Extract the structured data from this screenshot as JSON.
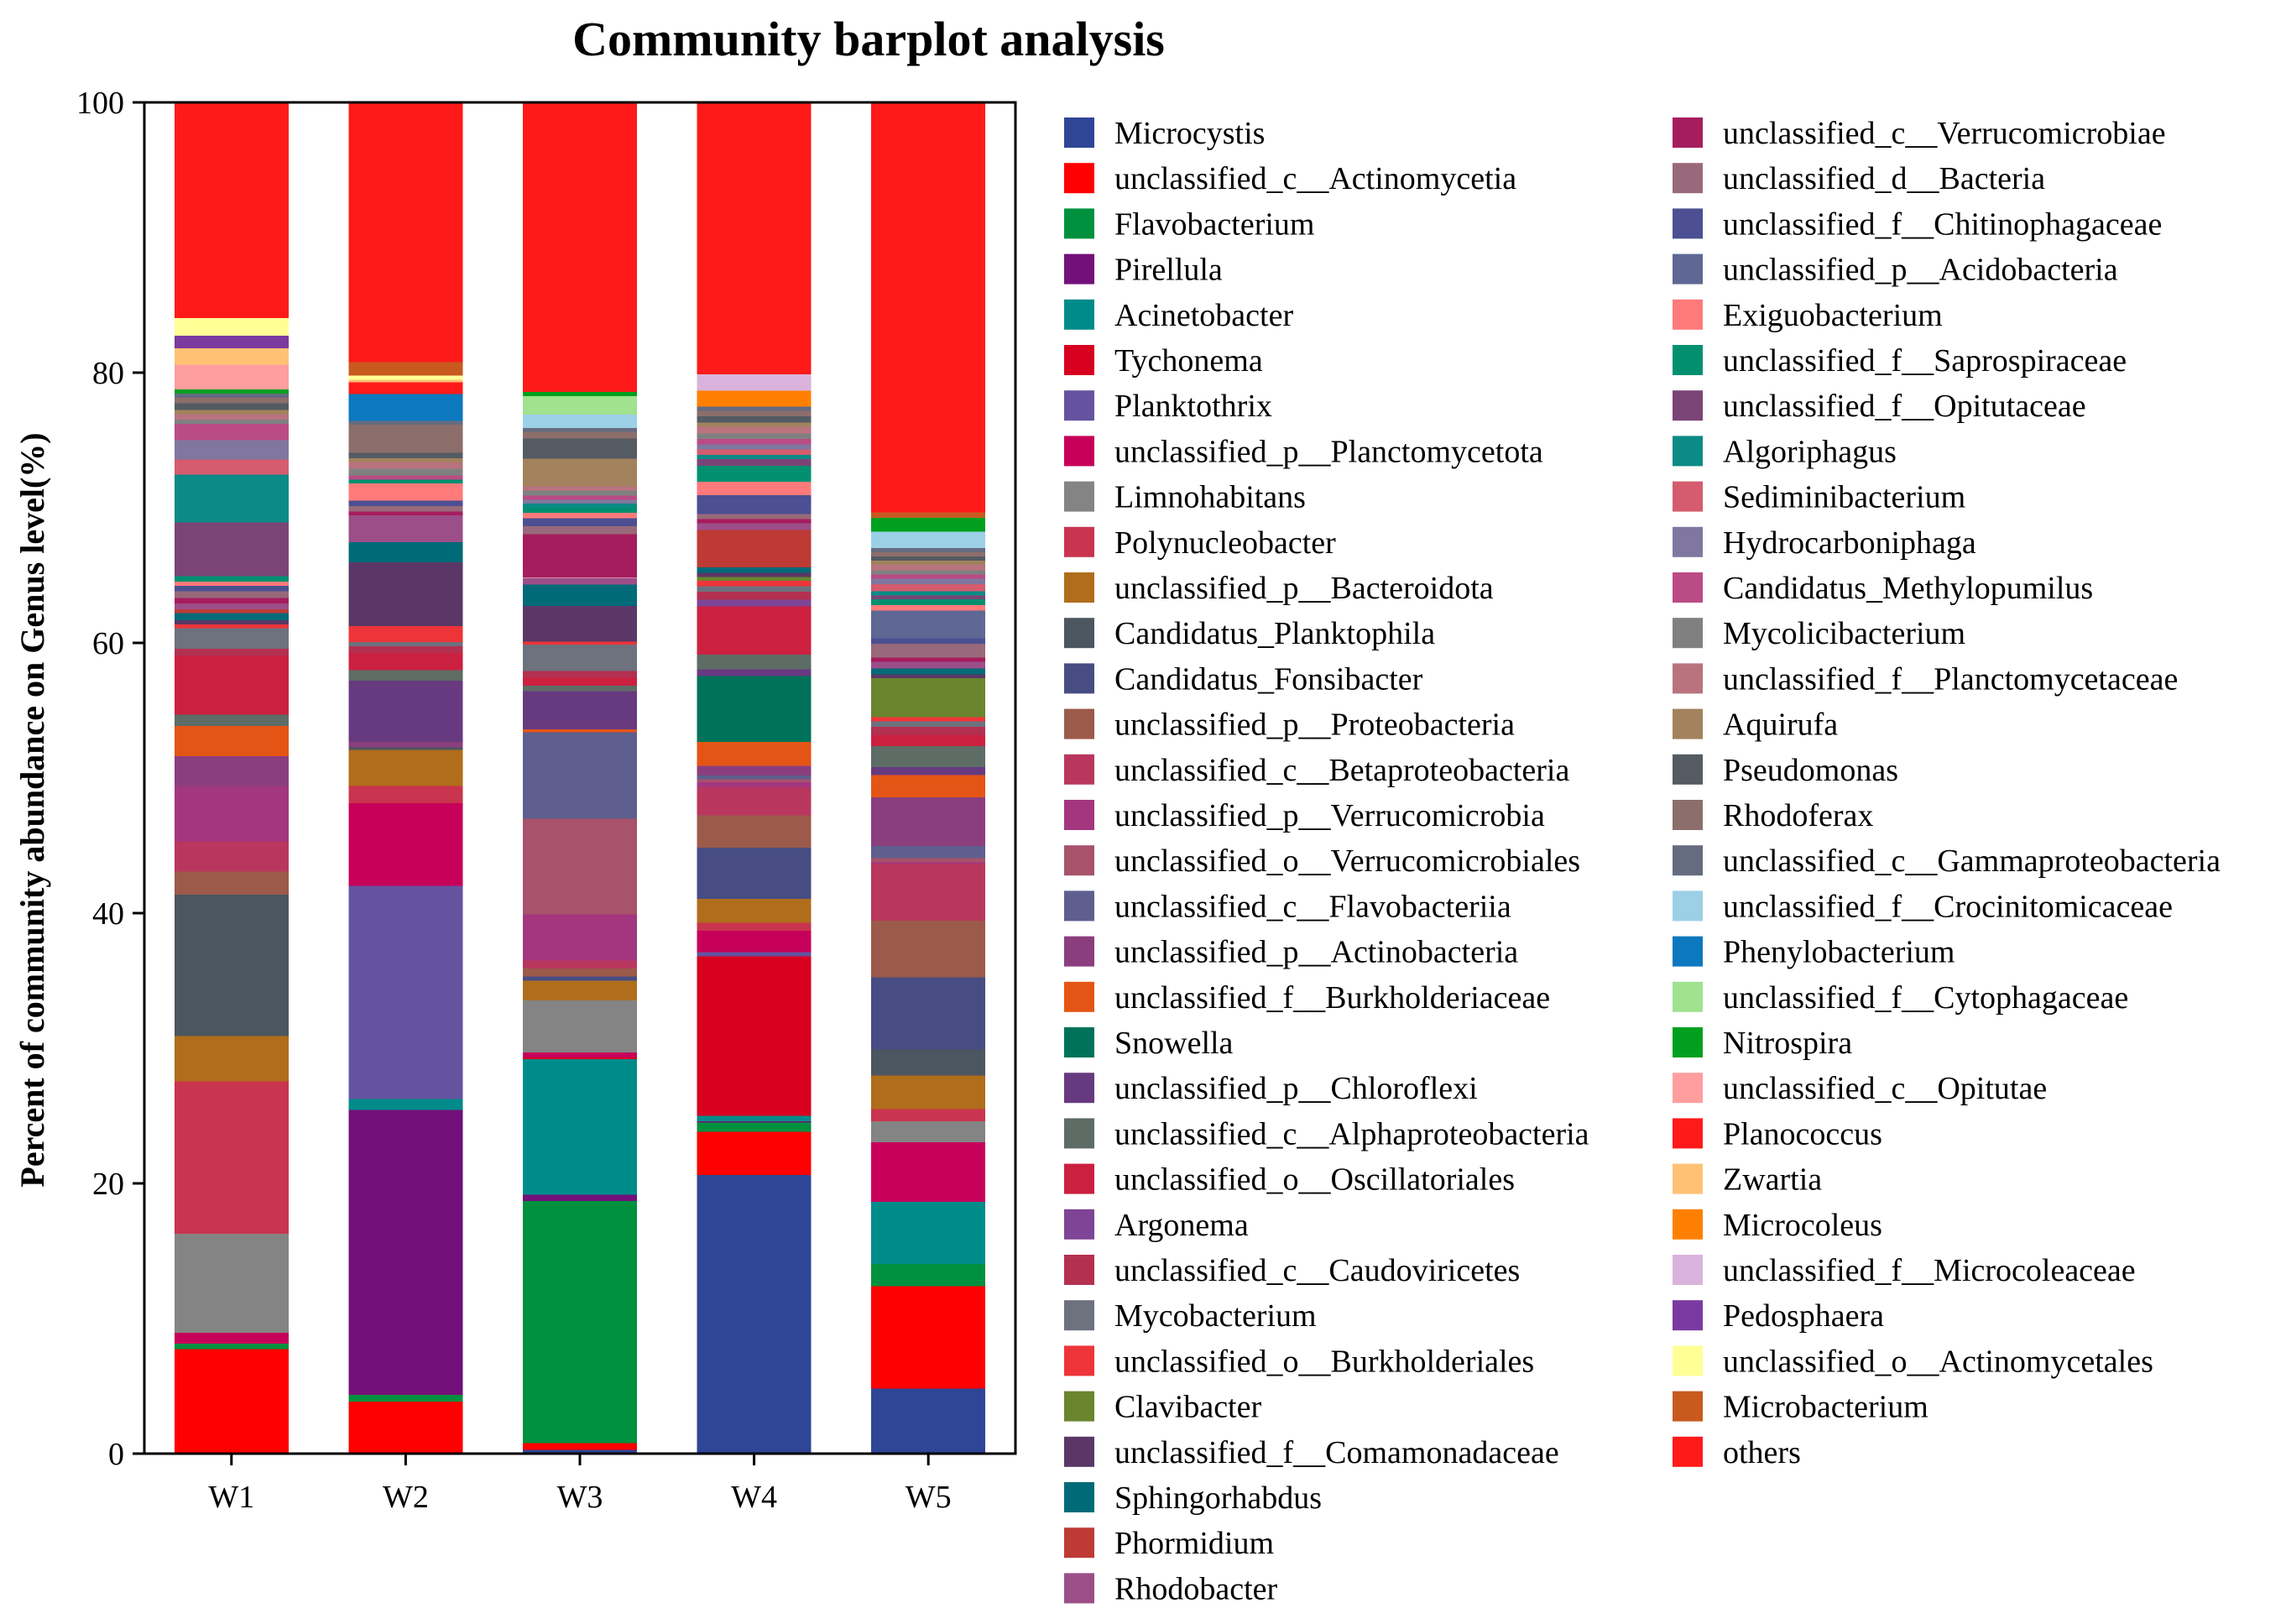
{
  "chart_data": {
    "type": "bar",
    "stacked": true,
    "title": "Community barplot analysis",
    "xlabel": "",
    "ylabel": "Percent of community abundance on Genus level(%)",
    "ylim": [
      0,
      100
    ],
    "yticks": [
      0,
      20,
      40,
      60,
      80,
      100
    ],
    "grid": false,
    "legend_position": "right",
    "categories": [
      "W1",
      "W2",
      "W3",
      "W4",
      "W5"
    ],
    "series": [
      {
        "name": "Microcystis",
        "color": "#2F4596",
        "values": [
          0.0,
          0.0,
          0.3,
          20.8,
          4.7
        ]
      },
      {
        "name": "unclassified_c__Actinomycetia",
        "color": "#FF0000",
        "values": [
          7.6,
          3.9,
          0.5,
          3.2,
          7.4
        ]
      },
      {
        "name": "Flavobacterium",
        "color": "#00913F",
        "values": [
          0.4,
          0.5,
          18.2,
          0.7,
          1.6
        ]
      },
      {
        "name": "Pirellula",
        "color": "#73107A",
        "values": [
          0.0,
          21.4,
          0.5,
          0.1,
          0.0
        ]
      },
      {
        "name": "Acinetobacter",
        "color": "#008B8B",
        "values": [
          0.0,
          0.8,
          10.2,
          0.4,
          4.5
        ]
      },
      {
        "name": "Tychonema",
        "color": "#D7001F",
        "values": [
          0.0,
          0.0,
          0.1,
          11.9,
          0.0
        ]
      },
      {
        "name": "Planktothrix",
        "color": "#6553A0",
        "values": [
          0.0,
          16.0,
          0.0,
          0.3,
          0.0
        ]
      },
      {
        "name": "unclassified_p__Planctomycetota",
        "color": "#C7005A",
        "values": [
          0.8,
          6.2,
          0.4,
          1.6,
          4.3
        ]
      },
      {
        "name": "Limnohabitans",
        "color": "#848484",
        "values": [
          7.2,
          0.0,
          3.9,
          0.0,
          1.5
        ]
      },
      {
        "name": "Polynucleobacter",
        "color": "#C9344E",
        "values": [
          11.1,
          1.3,
          0.0,
          0.6,
          0.9
        ]
      },
      {
        "name": "unclassified_p__Bacteroidota",
        "color": "#B06D1C",
        "values": [
          3.3,
          2.7,
          1.5,
          1.8,
          2.4
        ]
      },
      {
        "name": "Candidatus_Planktophila",
        "color": "#4C5660",
        "values": [
          10.3,
          0.2,
          0.0,
          0.0,
          1.9
        ]
      },
      {
        "name": "Candidatus_Fonsibacter",
        "color": "#474D82",
        "values": [
          0.0,
          0.0,
          0.3,
          3.8,
          5.2
        ]
      },
      {
        "name": "unclassified_p__Proteobacteria",
        "color": "#9C5A4A",
        "values": [
          1.7,
          0.0,
          0.6,
          2.4,
          4.1
        ]
      },
      {
        "name": "unclassified_c__Betaproteobacteria",
        "color": "#B9375E",
        "values": [
          2.2,
          0.0,
          0.6,
          2.1,
          4.1
        ]
      },
      {
        "name": "unclassified_p__Verrucomicrobia",
        "color": "#A3367F",
        "values": [
          4.0,
          0.0,
          3.5,
          0.4,
          0.1
        ]
      },
      {
        "name": "unclassified_o__Verrucomicrobiales",
        "color": "#A8526B",
        "values": [
          0.0,
          0.0,
          7.2,
          0.2,
          0.3
        ]
      },
      {
        "name": "unclassified_c__Flavobacteriia",
        "color": "#5E5F8E",
        "values": [
          0.0,
          0.0,
          6.5,
          0.3,
          0.9
        ]
      },
      {
        "name": "unclassified_p__Actinobacteria",
        "color": "#8B3E7E",
        "values": [
          2.2,
          0.4,
          0.0,
          0.7,
          3.5
        ]
      },
      {
        "name": "unclassified_f__Burkholderiaceae",
        "color": "#E45515",
        "values": [
          2.2,
          0.0,
          0.2,
          1.8,
          1.6
        ]
      },
      {
        "name": "Snowella",
        "color": "#00725A",
        "values": [
          0.0,
          0.0,
          0.0,
          4.9,
          0.0
        ]
      },
      {
        "name": "unclassified_p__Chloroflexi",
        "color": "#673A80",
        "values": [
          0.0,
          4.6,
          2.9,
          0.5,
          0.6
        ]
      },
      {
        "name": "unclassified_c__Alphaproteobacteria",
        "color": "#5D6D66",
        "values": [
          0.8,
          0.8,
          0.4,
          1.1,
          1.5
        ]
      },
      {
        "name": "unclassified_o__Oscillatoriales",
        "color": "#CC2040",
        "values": [
          4.3,
          1.3,
          0.6,
          3.6,
          0.8
        ]
      },
      {
        "name": "Argonema",
        "color": "#7E4496",
        "values": [
          0.0,
          0.0,
          0.0,
          0.5,
          0.0
        ]
      },
      {
        "name": "unclassified_c__Caudoviricetes",
        "color": "#B43050",
        "values": [
          0.5,
          0.5,
          0.5,
          0.6,
          0.6
        ]
      },
      {
        "name": "Mycobacterium",
        "color": "#6E717E",
        "values": [
          1.5,
          0.3,
          2.0,
          0.4,
          0.4
        ]
      },
      {
        "name": "unclassified_o__Burkholderiales",
        "color": "#EE3438",
        "values": [
          0.3,
          1.2,
          0.2,
          0.4,
          0.3
        ]
      },
      {
        "name": "Clavibacter",
        "color": "#6A852E",
        "values": [
          0.0,
          0.0,
          0.0,
          0.3,
          2.8
        ]
      },
      {
        "name": "unclassified_f__Comamonadaceae",
        "color": "#5A3766",
        "values": [
          0.3,
          4.8,
          2.7,
          0.3,
          0.3
        ]
      },
      {
        "name": "Sphingorhabdus",
        "color": "#006A78",
        "values": [
          0.5,
          1.5,
          1.6,
          0.4,
          0.4
        ]
      },
      {
        "name": "Phormidium",
        "color": "#BE3B35",
        "values": [
          0.3,
          0.0,
          0.0,
          2.8,
          0.0
        ]
      },
      {
        "name": "Rhodobacter",
        "color": "#9C4E88",
        "values": [
          0.4,
          2.0,
          0.5,
          0.5,
          0.5
        ]
      },
      {
        "name": "unclassified_c__Verrucomicrobiae",
        "color": "#A61D5E",
        "values": [
          0.4,
          0.3,
          3.3,
          0.3,
          0.3
        ]
      },
      {
        "name": "unclassified_d__Bacteria",
        "color": "#98697A",
        "values": [
          0.5,
          0.4,
          0.6,
          0.4,
          1.0
        ]
      },
      {
        "name": "unclassified_f__Chitinophagaceae",
        "color": "#4C4F92",
        "values": [
          0.4,
          0.4,
          0.6,
          1.4,
          0.4
        ]
      },
      {
        "name": "unclassified_p__Acidobacteria",
        "color": "#5F6894",
        "values": [
          0.0,
          0.0,
          0.0,
          0.0,
          2.0
        ]
      },
      {
        "name": "Exiguobacterium",
        "color": "#FF7A7A",
        "values": [
          0.3,
          1.3,
          0.4,
          1.0,
          0.4
        ]
      },
      {
        "name": "unclassified_f__Saprospiraceae",
        "color": "#009070",
        "values": [
          0.4,
          0.3,
          0.4,
          1.2,
          0.4
        ]
      },
      {
        "name": "unclassified_f__Opitutaceae",
        "color": "#7B4477",
        "values": [
          3.9,
          0.0,
          0.0,
          0.5,
          0.3
        ]
      },
      {
        "name": "Algoriphagus",
        "color": "#0C8A85",
        "values": [
          3.5,
          0.0,
          0.3,
          0.3,
          0.3
        ]
      },
      {
        "name": "Sediminibacterium",
        "color": "#D45C6E",
        "values": [
          1.1,
          0.0,
          0.0,
          0.4,
          0.5
        ]
      },
      {
        "name": "Hydrocarboniphaga",
        "color": "#8077A0",
        "values": [
          1.4,
          0.0,
          0.3,
          0.4,
          0.4
        ]
      },
      {
        "name": "Candidatus_Methylopumilus",
        "color": "#BA4B84",
        "values": [
          1.2,
          0.3,
          0.3,
          0.4,
          0.3
        ]
      },
      {
        "name": "Mycolicibacterium",
        "color": "#808080",
        "values": [
          0.3,
          0.5,
          0.4,
          0.4,
          0.3
        ]
      },
      {
        "name": "unclassified_f__Planctomycetaceae",
        "color": "#B8737E",
        "values": [
          0.4,
          0.5,
          0.3,
          0.5,
          0.4
        ]
      },
      {
        "name": "Aquirufa",
        "color": "#A2825C",
        "values": [
          0.3,
          0.3,
          2.1,
          0.3,
          0.3
        ]
      },
      {
        "name": "Pseudomonas",
        "color": "#545B62",
        "values": [
          0.5,
          0.4,
          1.5,
          0.5,
          0.3
        ]
      },
      {
        "name": "Rhodoferax",
        "color": "#8C6E6A",
        "values": [
          0.4,
          2.1,
          0.5,
          0.4,
          0.3
        ]
      },
      {
        "name": "unclassified_c__Gammaproteobacteria",
        "color": "#656B80",
        "values": [
          0.3,
          0.3,
          0.3,
          0.3,
          0.3
        ]
      },
      {
        "name": "unclassified_f__Crocinitomicaceae",
        "color": "#9BD0E6",
        "values": [
          0.0,
          0.0,
          1.0,
          0.0,
          1.2
        ]
      },
      {
        "name": "Phenylobacterium",
        "color": "#0C78BE",
        "values": [
          0.0,
          2.0,
          0.0,
          0.0,
          0.0
        ]
      },
      {
        "name": "unclassified_f__Cytophagaceae",
        "color": "#A0E28E",
        "values": [
          0.0,
          0.0,
          1.4,
          0.0,
          0.0
        ]
      },
      {
        "name": "Nitrospira",
        "color": "#00A01E",
        "values": [
          0.3,
          0.0,
          0.3,
          0.0,
          1.0
        ]
      },
      {
        "name": "unclassified_c__Opitutae",
        "color": "#FF9E9E",
        "values": [
          1.8,
          0.0,
          0.0,
          0.0,
          0.0
        ]
      },
      {
        "name": "Planococcus",
        "color": "#FF1A1A",
        "values": [
          0.0,
          0.9,
          0.0,
          0.0,
          0.0
        ]
      },
      {
        "name": "Zwartia",
        "color": "#FFC275",
        "values": [
          1.2,
          0.2,
          0.0,
          0.0,
          0.0
        ]
      },
      {
        "name": "Microcoleus",
        "color": "#FF8000",
        "values": [
          0.0,
          0.0,
          0.0,
          1.2,
          0.0
        ]
      },
      {
        "name": "unclassified_f__Microcoleaceae",
        "color": "#D9B3DC",
        "values": [
          0.0,
          0.0,
          0.0,
          1.2,
          0.0
        ]
      },
      {
        "name": "Pedosphaera",
        "color": "#7B3AA0",
        "values": [
          0.9,
          0.0,
          0.0,
          0.0,
          0.0
        ]
      },
      {
        "name": "unclassified_o__Actinomycetales",
        "color": "#FFFF96",
        "values": [
          1.3,
          0.3,
          0.0,
          0.0,
          0.0
        ]
      },
      {
        "name": "Microbacterium",
        "color": "#C85A20",
        "values": [
          0.0,
          1.0,
          0.0,
          0.0,
          0.4
        ]
      },
      {
        "name": "others",
        "color": "#FF1A1A",
        "values": [
          15.7,
          19.5,
          21.8,
          20.3,
          29.6
        ]
      }
    ]
  }
}
